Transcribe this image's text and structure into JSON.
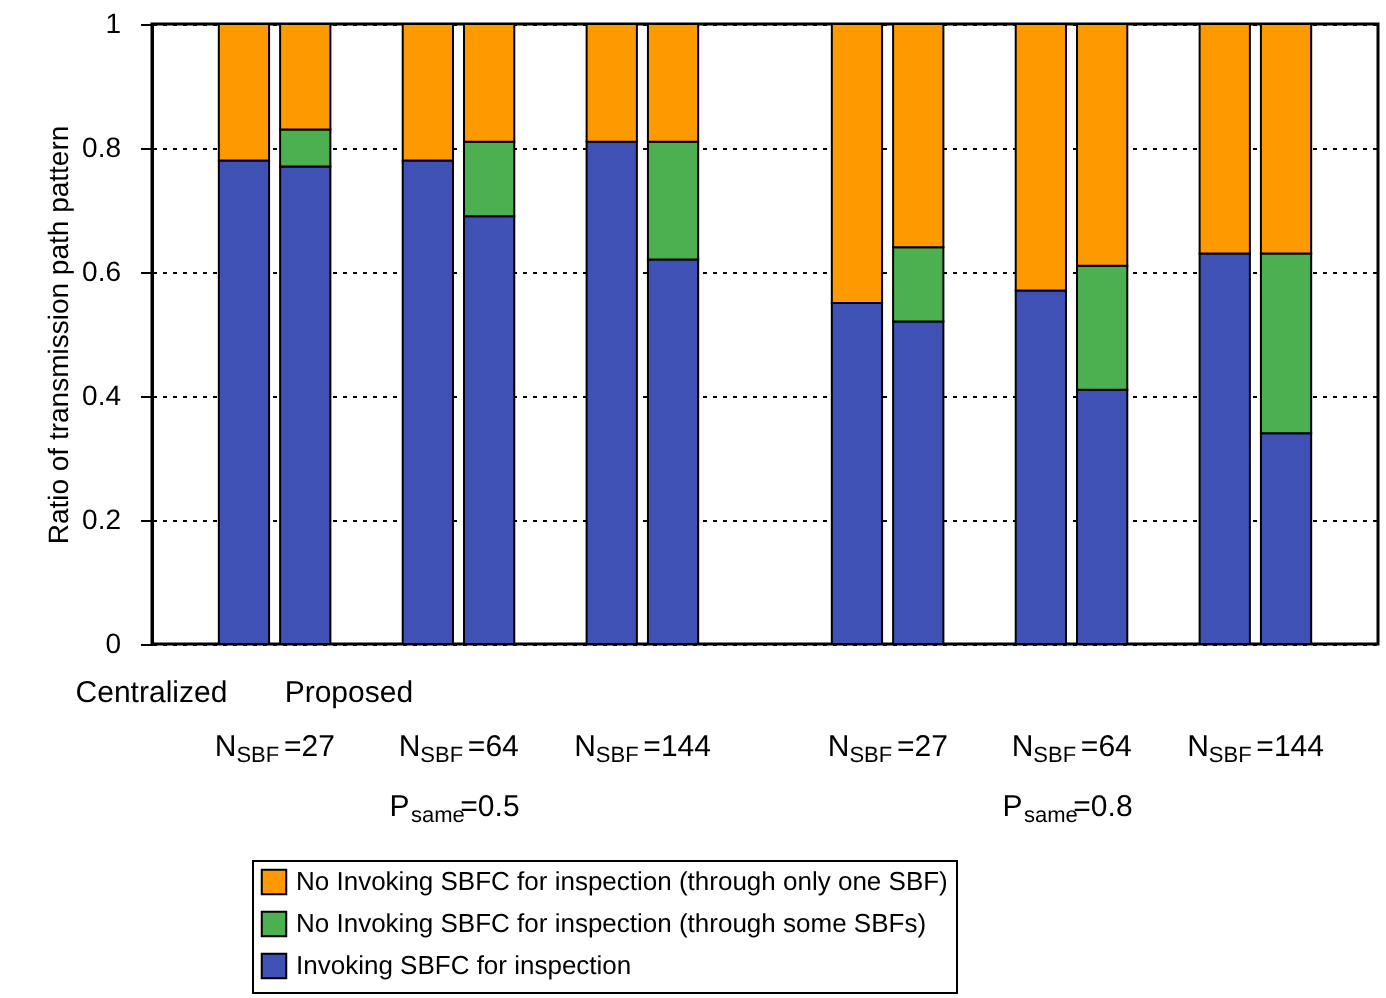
{
  "chart_data": {
    "type": "bar",
    "stacked": true,
    "ylabel": "Ratio of transmission path pattern",
    "categories": [
      null,
      null,
      null,
      null,
      null,
      null,
      null,
      null,
      null,
      null,
      null,
      null,
      null,
      null,
      null,
      null,
      null,
      null,
      null,
      null
    ],
    "series": [
      {
        "name": "Invoking SBFC for inspection",
        "color": "#4051b5",
        "values": [
          null,
          0.78,
          0.77,
          null,
          0.78,
          0.69,
          null,
          0.81,
          0.62,
          null,
          null,
          0.55,
          0.52,
          null,
          0.57,
          0.41,
          null,
          0.63,
          0.34,
          null
        ]
      },
      {
        "name": "No Invoking SBFC for inspection (through some SBFs)",
        "color": "#4caf50",
        "values": [
          null,
          null,
          0.06,
          null,
          null,
          0.12,
          null,
          null,
          0.19,
          null,
          null,
          null,
          0.12,
          null,
          null,
          0.2,
          null,
          null,
          0.29,
          null
        ]
      },
      {
        "name": "No Invoking SBFC for inspection (through only one SBF)",
        "color": "#ff9900",
        "values": [
          null,
          0.22,
          0.17,
          null,
          0.22,
          0.19,
          null,
          0.19,
          0.19,
          null,
          null,
          0.45,
          0.36,
          null,
          0.43,
          0.39,
          null,
          0.37,
          0.37,
          null
        ]
      }
    ],
    "ylim": [
      0,
      1
    ],
    "yticks": [
      0,
      0.2,
      0.4,
      0.6,
      0.8,
      1
    ],
    "grid": "y",
    "legend": "bottom",
    "annotations": [
      "Centralized",
      "Proposed",
      "N$_{SBF}$=27",
      "N$_{SBF}$=64",
      "N$_{SBF}$=144",
      "N$_{SBF}$=27",
      "N$_{SBF}$=64",
      "N$_{SBF}$=144",
      "P$_{same}$=0.5",
      "P$_{same}$=0.8"
    ]
  }
}
